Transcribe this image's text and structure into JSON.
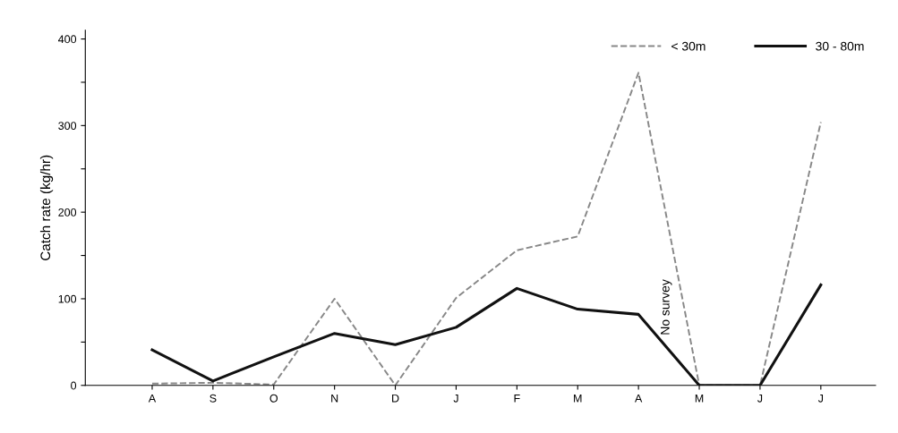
{
  "chart_data": {
    "type": "line",
    "ylabel": "Catch rate (kg/hr)",
    "categories": [
      "A",
      "S",
      "O",
      "N",
      "D",
      "J",
      "F",
      "M",
      "A",
      "M",
      "J",
      "J"
    ],
    "series": [
      {
        "name": "< 30m",
        "color": "#888888",
        "line_style": "dashed",
        "values": [
          2,
          3,
          1,
          100,
          0,
          101,
          156,
          172,
          361,
          0,
          0,
          304
        ]
      },
      {
        "name": "30 - 80m",
        "color": "#111111",
        "line_style": "solid",
        "values": [
          41,
          5,
          33,
          60,
          47,
          67,
          112,
          88,
          82,
          0,
          0,
          116
        ]
      }
    ],
    "ylim": [
      0,
      410
    ],
    "yticks": [
      0,
      {
        "value": 50,
        "label": null
      },
      100,
      {
        "value": 150,
        "label": null
      },
      200,
      {
        "value": 250,
        "label": null
      },
      300,
      {
        "value": 350,
        "label": null
      },
      400
    ],
    "annotations": [
      "No survey"
    ],
    "legend": "top right",
    "grid": false,
    "marker": "none"
  }
}
